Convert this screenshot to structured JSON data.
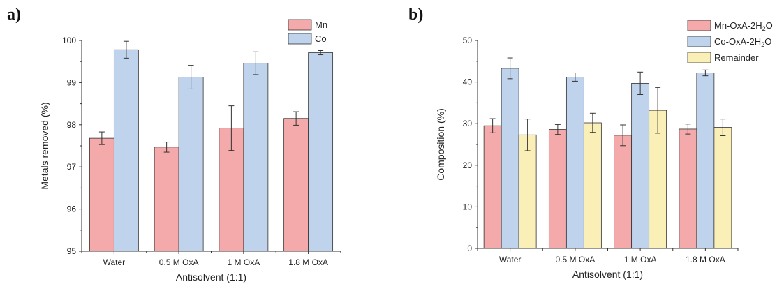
{
  "panels": {
    "a": "a)",
    "b": "b)"
  },
  "colors": {
    "Mn": "#f4aaaa",
    "Co": "#bfd3ec",
    "Remainder": "#fbefb8",
    "stroke": "#333333"
  },
  "chart_data": [
    {
      "id": "a",
      "type": "bar",
      "xlabel": "Antisolvent (1:1)",
      "ylabel": "Metals removed (%)",
      "ylim": [
        95,
        100
      ],
      "yticks": [
        95,
        96,
        97,
        98,
        99,
        100
      ],
      "categories": [
        "Water",
        "0.5 M OxA",
        "1 M OxA",
        "1.8 M OxA"
      ],
      "legend_position": "top-right",
      "series": [
        {
          "key": "Mn",
          "name": "Mn",
          "values": [
            97.68,
            97.47,
            97.92,
            98.15
          ],
          "errors": [
            0.15,
            0.12,
            0.53,
            0.16
          ]
        },
        {
          "key": "Co",
          "name": "Co",
          "values": [
            99.78,
            99.13,
            99.46,
            99.71
          ],
          "errors": [
            0.2,
            0.28,
            0.27,
            0.05
          ]
        }
      ]
    },
    {
      "id": "b",
      "type": "bar",
      "xlabel": "Antisolvent (1:1)",
      "ylabel": "Composition (%)",
      "ylim": [
        0,
        50
      ],
      "yticks": [
        0,
        10,
        20,
        30,
        40,
        50
      ],
      "categories": [
        "Water",
        "0.5 M OxA",
        "1 M OxA",
        "1.8 M OxA"
      ],
      "legend_position": "top-right",
      "series": [
        {
          "key": "Mn",
          "name": "Mn-OxA-2H",
          "sub": "2",
          "suffix": "O",
          "values": [
            29.5,
            28.6,
            27.2,
            28.7
          ],
          "errors": [
            1.7,
            1.2,
            2.5,
            1.2
          ]
        },
        {
          "key": "Co",
          "name": "Co-OxA-2H",
          "sub": "2",
          "suffix": "O",
          "values": [
            43.3,
            41.2,
            39.7,
            42.2
          ],
          "errors": [
            2.5,
            1.0,
            2.7,
            0.7
          ]
        },
        {
          "key": "Remainder",
          "name": "Remainder",
          "values": [
            27.3,
            30.2,
            33.2,
            29.1
          ],
          "errors": [
            3.8,
            2.3,
            5.5,
            2.0
          ]
        }
      ]
    }
  ]
}
